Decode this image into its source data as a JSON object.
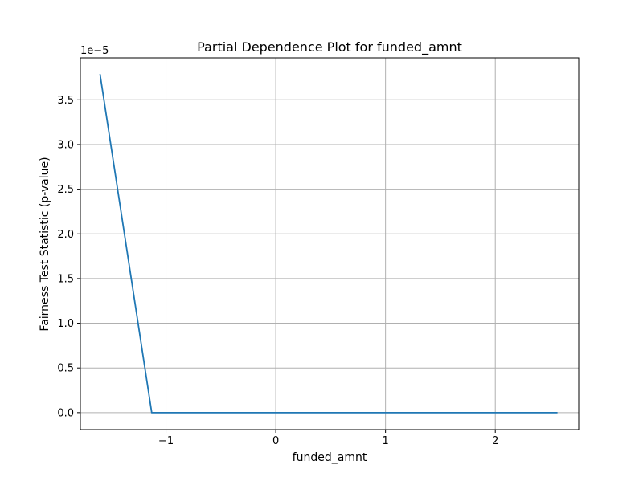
{
  "chart_data": {
    "type": "line",
    "title": "Partial Dependence Plot for funded_amnt",
    "xlabel": "funded_amnt",
    "ylabel": "Fairness Test Statistic (p-value)",
    "y_offset_label": "1e−5",
    "y_scale_factor": 1e-05,
    "xlim": [
      -1.78,
      2.76
    ],
    "ylim": [
      -0.19,
      3.97
    ],
    "x_ticks": [
      -1,
      0,
      1,
      2
    ],
    "x_tick_labels": [
      "−1",
      "0",
      "1",
      "2"
    ],
    "y_ticks": [
      0.0,
      0.5,
      1.0,
      1.5,
      2.0,
      2.5,
      3.0,
      3.5
    ],
    "y_tick_labels": [
      "0.0",
      "0.5",
      "1.0",
      "1.5",
      "2.0",
      "2.5",
      "3.0",
      "3.5"
    ],
    "grid": true,
    "series": [
      {
        "color": "#1f77b4",
        "x": [
          -1.6,
          -1.13,
          2.56
        ],
        "y": [
          3.78,
          0.0,
          0.0
        ]
      }
    ]
  }
}
